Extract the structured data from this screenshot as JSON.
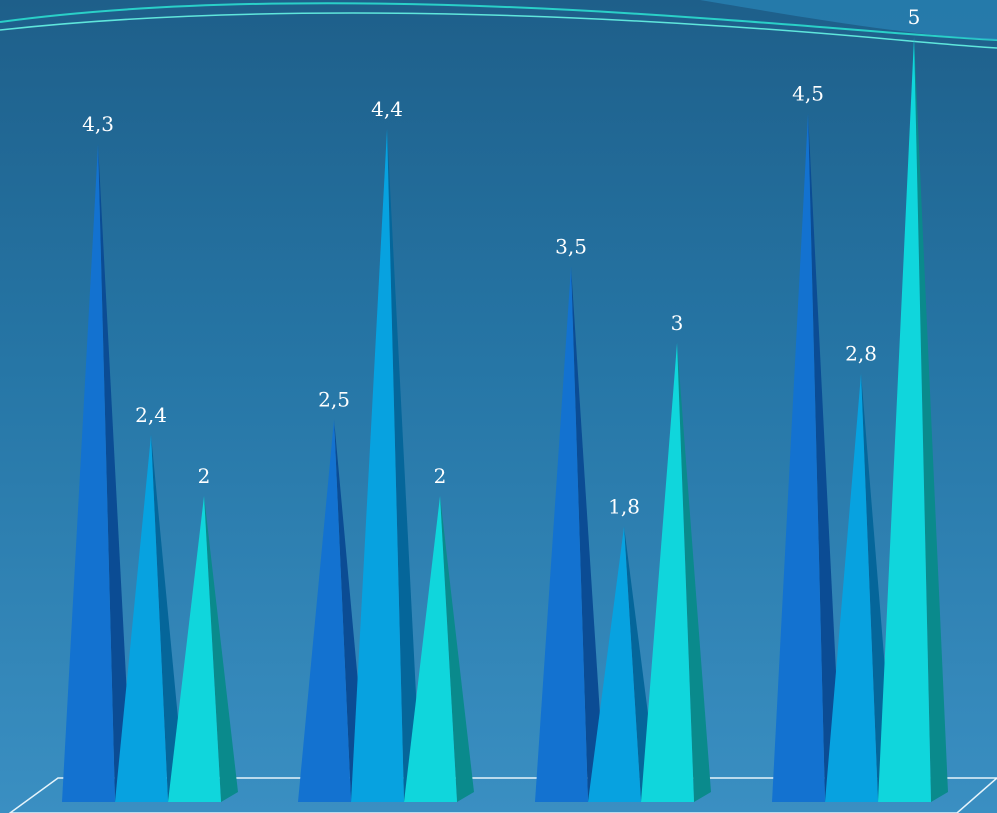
{
  "chart_data": {
    "type": "bar",
    "style": "3d-pyramid",
    "categories": [
      "",
      "",
      "",
      ""
    ],
    "series": [
      {
        "values": [
          4.3,
          2.5,
          3.5,
          4.5
        ],
        "color": "#1372d0",
        "shade": "#0b4c94"
      },
      {
        "values": [
          2.4,
          4.4,
          1.8,
          2.8
        ],
        "color": "#07a2e0",
        "shade": "#05669a"
      },
      {
        "values": [
          2,
          2,
          3,
          5
        ],
        "color": "#10d6dc",
        "shade": "#0a8a8c"
      }
    ],
    "value_labels": [
      [
        "4,3",
        "2,5",
        "3,5",
        "4,5"
      ],
      [
        "2,4",
        "4,4",
        "1,8",
        "2,8"
      ],
      [
        "2",
        "2",
        "3",
        "5"
      ]
    ],
    "ylim": [
      0,
      5
    ],
    "grid": false,
    "legend": "none",
    "title": "",
    "xlabel": "",
    "ylabel": ""
  }
}
